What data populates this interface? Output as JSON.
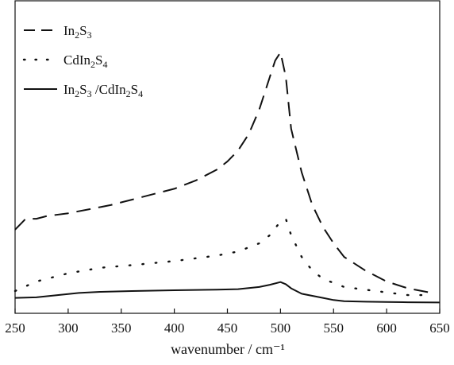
{
  "chart_data": {
    "type": "line",
    "xlabel": "wavenumber / cm⁻¹",
    "ylabel": "",
    "xlim": [
      250,
      650
    ],
    "ylim": [
      0,
      1
    ],
    "xticks": [
      250,
      300,
      350,
      400,
      450,
      500,
      550,
      600,
      650
    ],
    "y_tick_labels": false,
    "grid": false,
    "legend_position": "top-left",
    "series": [
      {
        "name": "In2S3",
        "label_parts": [
          [
            "In",
            false
          ],
          [
            "2",
            true
          ],
          [
            "S",
            false
          ],
          [
            "3",
            true
          ]
        ],
        "style": "dashed",
        "color": "#111111",
        "x": [
          250,
          260,
          270,
          280,
          300,
          320,
          340,
          360,
          380,
          400,
          420,
          440,
          450,
          460,
          470,
          480,
          490,
          495,
          500,
          505,
          510,
          520,
          530,
          540,
          550,
          560,
          580,
          600,
          620,
          640
        ],
        "y": [
          0.26,
          0.3,
          0.3,
          0.31,
          0.32,
          0.335,
          0.35,
          0.37,
          0.39,
          0.41,
          0.44,
          0.48,
          0.51,
          0.55,
          0.61,
          0.7,
          0.82,
          0.88,
          0.91,
          0.82,
          0.63,
          0.47,
          0.35,
          0.27,
          0.21,
          0.16,
          0.11,
          0.07,
          0.045,
          0.03
        ]
      },
      {
        "name": "CdIn2S4",
        "label_parts": [
          [
            "CdIn",
            false
          ],
          [
            "2",
            true
          ],
          [
            "S",
            false
          ],
          [
            "4",
            true
          ]
        ],
        "style": "dotted",
        "color": "#111111",
        "x": [
          250,
          270,
          300,
          330,
          360,
          400,
          440,
          460,
          480,
          490,
          500,
          505,
          510,
          520,
          530,
          540,
          560,
          580,
          600,
          620,
          640
        ],
        "y": [
          0.035,
          0.07,
          0.1,
          0.12,
          0.13,
          0.145,
          0.165,
          0.18,
          0.21,
          0.24,
          0.29,
          0.3,
          0.24,
          0.16,
          0.11,
          0.08,
          0.05,
          0.04,
          0.03,
          0.02,
          0.02
        ]
      },
      {
        "name": "In2S3/CdIn2S4",
        "label_parts": [
          [
            "In",
            false
          ],
          [
            "2",
            true
          ],
          [
            "S",
            false
          ],
          [
            "3",
            true
          ],
          [
            " /CdIn",
            false
          ],
          [
            "2",
            true
          ],
          [
            "S",
            false
          ],
          [
            "4",
            true
          ]
        ],
        "style": "solid",
        "color": "#111111",
        "x": [
          250,
          270,
          290,
          310,
          330,
          360,
          400,
          440,
          460,
          480,
          490,
          500,
          505,
          510,
          520,
          540,
          550,
          560,
          580,
          600,
          620,
          650
        ],
        "y": [
          0.01,
          0.012,
          0.02,
          0.028,
          0.032,
          0.035,
          0.038,
          0.04,
          0.042,
          0.05,
          0.058,
          0.068,
          0.06,
          0.045,
          0.025,
          0.01,
          0.002,
          -0.002,
          -0.004,
          -0.005,
          -0.006,
          -0.007
        ]
      }
    ]
  }
}
